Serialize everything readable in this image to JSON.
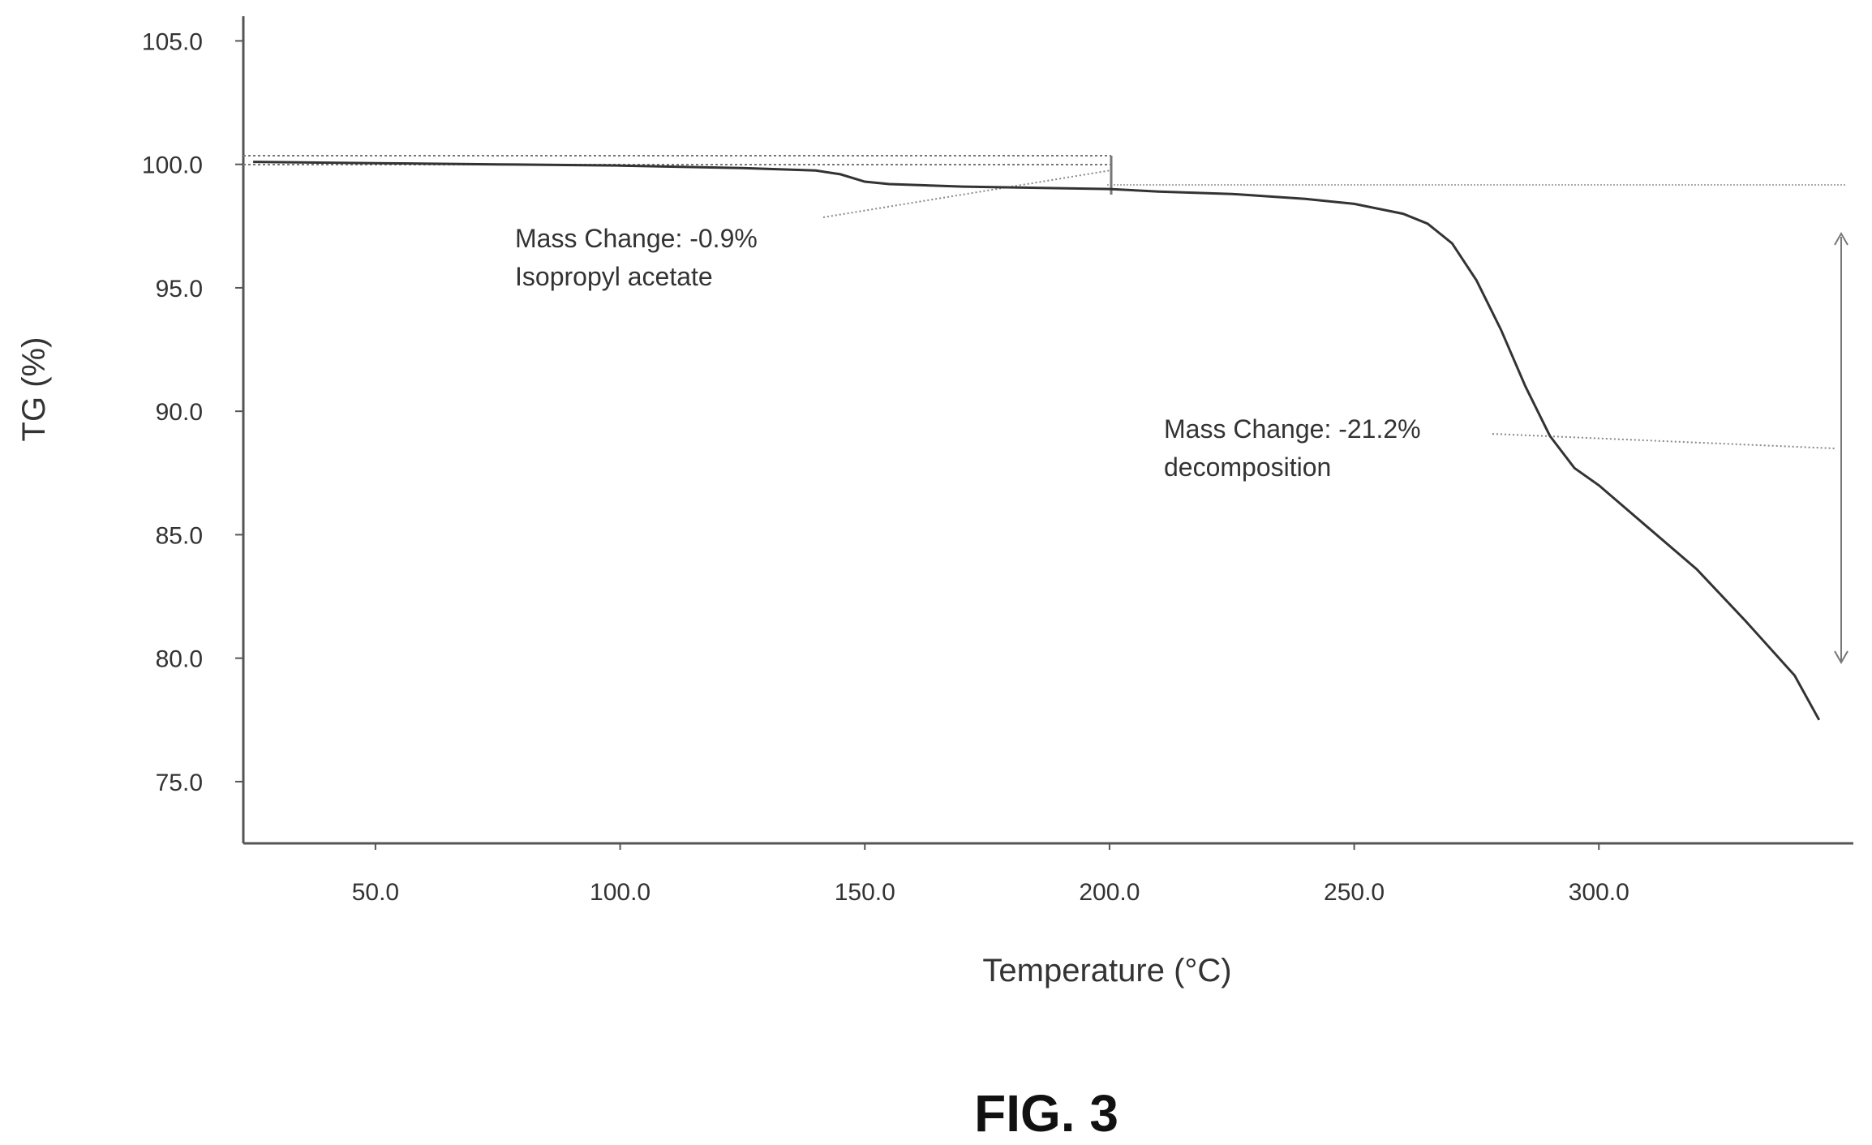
{
  "chart_data": {
    "type": "line",
    "xlabel": "Temperature (°C)",
    "ylabel": "TG (%)",
    "xlim": [
      23,
      352
    ],
    "ylim": [
      72.5,
      106
    ],
    "x_ticks": [
      50,
      100,
      150,
      200,
      250,
      300
    ],
    "x_tick_labels": [
      "50.0",
      "100.0",
      "150.0",
      "200.0",
      "250.0",
      "300.0"
    ],
    "y_ticks": [
      75,
      80,
      85,
      90,
      95,
      100,
      105
    ],
    "y_tick_labels": [
      "75.0",
      "80.0",
      "85.0",
      "90.0",
      "95.0",
      "100.0",
      "105.0"
    ],
    "grid": false,
    "legend": "none",
    "series": [
      {
        "x": [
          25,
          50,
          75,
          100,
          125,
          140,
          145,
          150,
          155,
          170,
          185,
          200,
          210,
          225,
          240,
          250,
          260,
          265,
          270,
          275,
          280,
          285,
          290,
          295,
          300,
          310,
          320,
          330,
          340,
          345
        ],
        "values": [
          100.1,
          100.05,
          100.0,
          99.95,
          99.85,
          99.75,
          99.6,
          99.3,
          99.2,
          99.1,
          99.05,
          99.0,
          98.9,
          98.8,
          98.6,
          98.4,
          98.0,
          97.6,
          96.8,
          95.3,
          93.3,
          91.0,
          89.0,
          87.7,
          87.0,
          85.3,
          83.6,
          81.5,
          79.3,
          77.5
        ]
      }
    ],
    "annotations": [
      {
        "line1": "Mass Change: -0.9%",
        "line2": "Isopropyl acetate",
        "value": -0.9,
        "range_x": [
          25,
          200
        ]
      },
      {
        "line1": "Mass Change: -21.2%",
        "line2": "decomposition",
        "value": -21.2,
        "range_x": [
          200,
          345
        ]
      }
    ]
  },
  "figure_label": "FIG. 3"
}
